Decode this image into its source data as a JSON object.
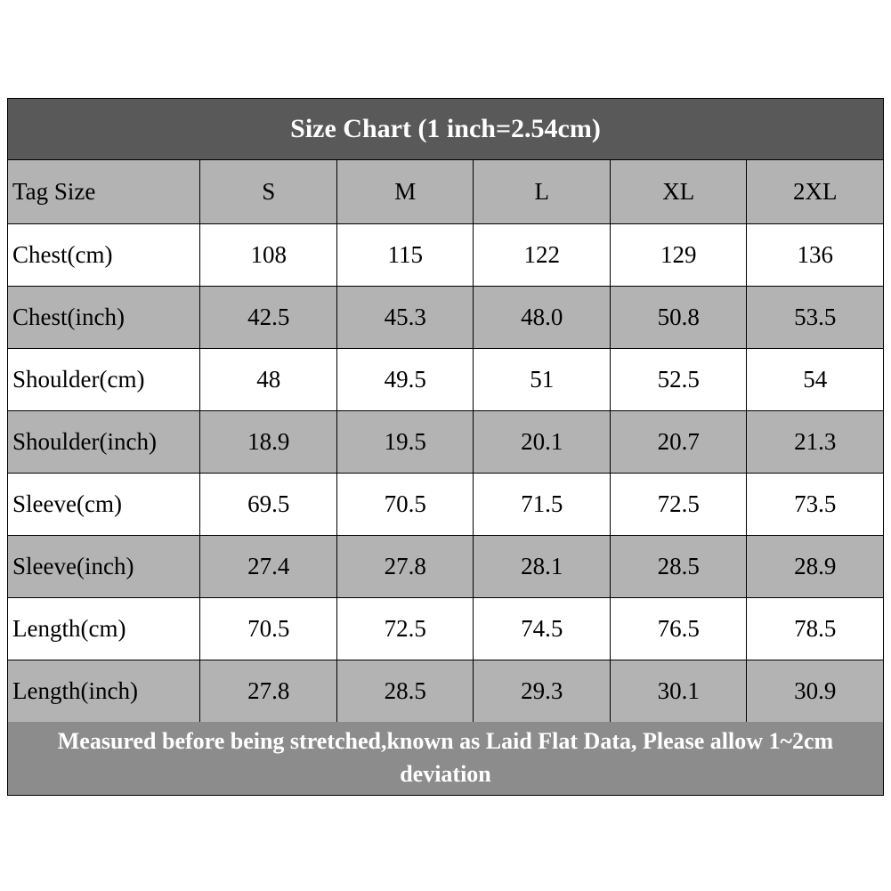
{
  "chart_data": {
    "type": "table",
    "title": "Size Chart (1 inch=2.54cm)",
    "columns": [
      "Tag Size",
      "S",
      "M",
      "L",
      "XL",
      "2XL"
    ],
    "rows": [
      {
        "label": "Chest(cm)",
        "values": [
          "108",
          "115",
          "122",
          "129",
          "136"
        ]
      },
      {
        "label": "Chest(inch)",
        "values": [
          "42.5",
          "45.3",
          "48.0",
          "50.8",
          "53.5"
        ]
      },
      {
        "label": "Shoulder(cm)",
        "values": [
          "48",
          "49.5",
          "51",
          "52.5",
          "54"
        ]
      },
      {
        "label": "Shoulder(inch)",
        "values": [
          "18.9",
          "19.5",
          "20.1",
          "20.7",
          "21.3"
        ]
      },
      {
        "label": "Sleeve(cm)",
        "values": [
          "69.5",
          "70.5",
          "71.5",
          "72.5",
          "73.5"
        ]
      },
      {
        "label": "Sleeve(inch)",
        "values": [
          "27.4",
          "27.8",
          "28.1",
          "28.5",
          "28.9"
        ]
      },
      {
        "label": "Length(cm)",
        "values": [
          "70.5",
          "72.5",
          "74.5",
          "76.5",
          "78.5"
        ]
      },
      {
        "label": "Length(inch)",
        "values": [
          "27.8",
          "28.5",
          "29.3",
          "30.1",
          "30.9"
        ]
      }
    ],
    "note": "Measured before being stretched,known as Laid Flat Data, Please allow 1~2cm deviation",
    "layout": {
      "grid": "on",
      "header_position": "top",
      "note_position": "bottom"
    },
    "colors": {
      "title_bar_bg": "#595959",
      "header_row_bg": "#b3b3b3",
      "alt_row_bg": "#b3b3b3",
      "row_bg": "#ffffff",
      "footer_bg": "#8c8c8c",
      "border": "#000000",
      "title_text": "#ffffff",
      "footer_text": "#ffffff",
      "cell_text": "#000000"
    }
  }
}
